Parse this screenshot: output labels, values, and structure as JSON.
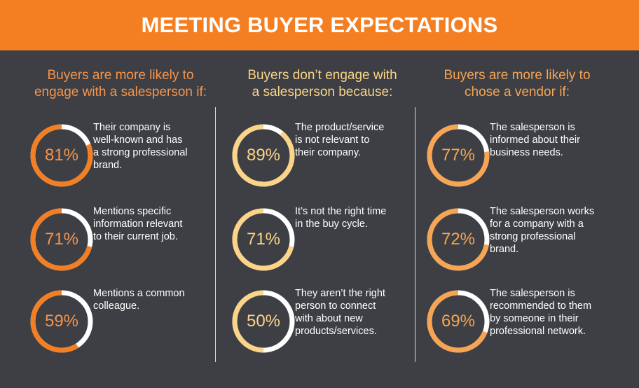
{
  "banner": {
    "title": "MEETING BUYER EXPECTATIONS"
  },
  "colors": {
    "background": "#3d3f44",
    "banner": "#f47f23",
    "ring_track": "#ffffff",
    "orange": "#f47f23",
    "orange_text": "#f7944a",
    "light": "#fbd488",
    "light_text": "#fbd488",
    "mid": "#f7a453",
    "mid_text": "#f7a453"
  },
  "columns": [
    {
      "title": "Buyers are more likely to\nengage with a salesperson if:",
      "accent": "orange",
      "stats": [
        {
          "value": "81%",
          "percent": 81,
          "text": "Their company is\nwell-known and has\na strong professional\nbrand."
        },
        {
          "value": "71%",
          "percent": 71,
          "text": "Mentions specific\ninformation relevant\nto their current job."
        },
        {
          "value": "59%",
          "percent": 59,
          "text": "Mentions a common\ncolleague."
        }
      ]
    },
    {
      "title": "Buyers don’t engage with\na salesperson because:",
      "accent": "light",
      "stats": [
        {
          "value": "89%",
          "percent": 89,
          "text": "The product/service\nis not relevant to\ntheir company."
        },
        {
          "value": "71%",
          "percent": 71,
          "text": "It’s not the right time\n in the buy cycle."
        },
        {
          "value": "50%",
          "percent": 50,
          "text": "They aren’t the right\nperson to connect\nwith about new\nproducts/services."
        }
      ]
    },
    {
      "title": "Buyers are more likely to\nchose a vendor if:",
      "accent": "mid",
      "stats": [
        {
          "value": "77%",
          "percent": 77,
          "text": "The salesperson is\ninformed about their\nbusiness needs."
        },
        {
          "value": "72%",
          "percent": 72,
          "text": "The salesperson works\nfor a company with a\nstrong professional\nbrand."
        },
        {
          "value": "69%",
          "percent": 69,
          "text": "The salesperson is\nrecommended to them\nby someone in their\nprofessional network."
        }
      ]
    }
  ],
  "chart_data": {
    "type": "pie",
    "title": "MEETING BUYER EXPECTATIONS",
    "groups": [
      {
        "title": "Buyers are more likely to engage with a salesperson if:",
        "categories": [
          "Their company is well-known and has a strong professional brand.",
          "Mentions specific information relevant to their current job.",
          "Mentions a common colleague."
        ],
        "values": [
          81,
          71,
          59
        ]
      },
      {
        "title": "Buyers don’t engage with a salesperson because:",
        "categories": [
          "The product/service is not relevant to their company.",
          "It’s not the right time in the buy cycle.",
          "They aren’t the right person to connect with about new products/services."
        ],
        "values": [
          89,
          71,
          50
        ]
      },
      {
        "title": "Buyers are more likely to chose a vendor if:",
        "categories": [
          "The salesperson is informed about their business needs.",
          "The salesperson works for a company with a strong professional brand.",
          "The salesperson is recommended to them by someone in their professional network."
        ],
        "values": [
          77,
          72,
          69
        ]
      }
    ]
  }
}
